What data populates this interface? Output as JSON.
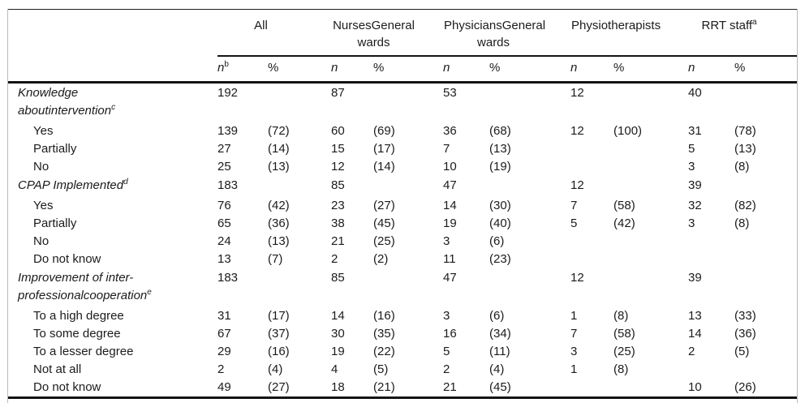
{
  "table": {
    "groups": [
      {
        "line1": "All",
        "line2": "",
        "sup": ""
      },
      {
        "line1": "NursesGeneral",
        "line2": "wards",
        "sup": ""
      },
      {
        "line1": "PhysiciansGeneral",
        "line2": "wards",
        "sup": ""
      },
      {
        "line1": "Physiotherapists",
        "line2": "",
        "sup": ""
      },
      {
        "line1": "RRT staff",
        "line2": "",
        "sup": "a"
      }
    ],
    "subheaders": [
      {
        "label": "n",
        "sup": "b"
      },
      {
        "label": "%",
        "sup": ""
      },
      {
        "label": "n",
        "sup": ""
      },
      {
        "label": "%",
        "sup": ""
      },
      {
        "label": "n",
        "sup": ""
      },
      {
        "label": "%",
        "sup": ""
      },
      {
        "label": "n",
        "sup": ""
      },
      {
        "label": "%",
        "sup": ""
      },
      {
        "label": "n",
        "sup": ""
      },
      {
        "label": "%",
        "sup": ""
      }
    ],
    "rows": [
      {
        "line1": "Knowledge",
        "line2": "aboutintervention",
        "sup": "c",
        "style": "section",
        "cells": [
          "192",
          "",
          "87",
          "",
          "53",
          "",
          "12",
          "",
          "40",
          ""
        ]
      },
      {
        "line1": "Yes",
        "line2": "",
        "sup": "",
        "style": "item",
        "cells": [
          "139",
          "(72)",
          "60",
          "(69)",
          "36",
          "(68)",
          "12",
          "(100)",
          "31",
          "(78)"
        ]
      },
      {
        "line1": "Partially",
        "line2": "",
        "sup": "",
        "style": "item",
        "cells": [
          "27",
          "(14)",
          "15",
          "(17)",
          "7",
          "(13)",
          "",
          "",
          "5",
          "(13)"
        ]
      },
      {
        "line1": "No",
        "line2": "",
        "sup": "",
        "style": "item",
        "cells": [
          "25",
          "(13)",
          "12",
          "(14)",
          "10",
          "(19)",
          "",
          "",
          "3",
          "(8)"
        ]
      },
      {
        "line1": "CPAP Implemented",
        "line2": "",
        "sup": "d",
        "style": "section",
        "cells": [
          "183",
          "",
          "85",
          "",
          "47",
          "",
          "12",
          "",
          "39",
          ""
        ]
      },
      {
        "line1": "Yes",
        "line2": "",
        "sup": "",
        "style": "item",
        "cells": [
          "76",
          "(42)",
          "23",
          "(27)",
          "14",
          "(30)",
          "7",
          "(58)",
          "32",
          "(82)"
        ]
      },
      {
        "line1": "Partially",
        "line2": "",
        "sup": "",
        "style": "item",
        "cells": [
          "65",
          "(36)",
          "38",
          "(45)",
          "19",
          "(40)",
          "5",
          "(42)",
          "3",
          "(8)"
        ]
      },
      {
        "line1": "No",
        "line2": "",
        "sup": "",
        "style": "item",
        "cells": [
          "24",
          "(13)",
          "21",
          "(25)",
          "3",
          "(6)",
          "",
          "",
          "",
          ""
        ]
      },
      {
        "line1": "Do not know",
        "line2": "",
        "sup": "",
        "style": "item",
        "cells": [
          "13",
          "(7)",
          "2",
          "(2)",
          "11",
          "(23)",
          "",
          "",
          "",
          ""
        ]
      },
      {
        "line1": "Improvement of inter-",
        "line2": "professionalcooperation",
        "sup": "e",
        "style": "section",
        "cells": [
          "183",
          "",
          "85",
          "",
          "47",
          "",
          "12",
          "",
          "39",
          ""
        ]
      },
      {
        "line1": "To a high degree",
        "line2": "",
        "sup": "",
        "style": "item",
        "cells": [
          "31",
          "(17)",
          "14",
          "(16)",
          "3",
          "(6)",
          "1",
          "(8)",
          "13",
          "(33)"
        ]
      },
      {
        "line1": "To some degree",
        "line2": "",
        "sup": "",
        "style": "item",
        "cells": [
          "67",
          "(37)",
          "30",
          "(35)",
          "16",
          "(34)",
          "7",
          "(58)",
          "14",
          "(36)"
        ]
      },
      {
        "line1": "To a lesser degree",
        "line2": "",
        "sup": "",
        "style": "item",
        "cells": [
          "29",
          "(16)",
          "19",
          "(22)",
          "5",
          "(11)",
          "3",
          "(25)",
          "2",
          "(5)"
        ]
      },
      {
        "line1": "Not at all",
        "line2": "",
        "sup": "",
        "style": "item",
        "cells": [
          "2",
          "(4)",
          "4",
          "(5)",
          "2",
          "(4)",
          "1",
          "(8)",
          "",
          ""
        ]
      },
      {
        "line1": "Do not know",
        "line2": "",
        "sup": "",
        "style": "item",
        "cells": [
          "49",
          "(27)",
          "18",
          "(21)",
          "21",
          "(45)",
          "",
          "",
          "10",
          "(26)"
        ]
      }
    ]
  }
}
